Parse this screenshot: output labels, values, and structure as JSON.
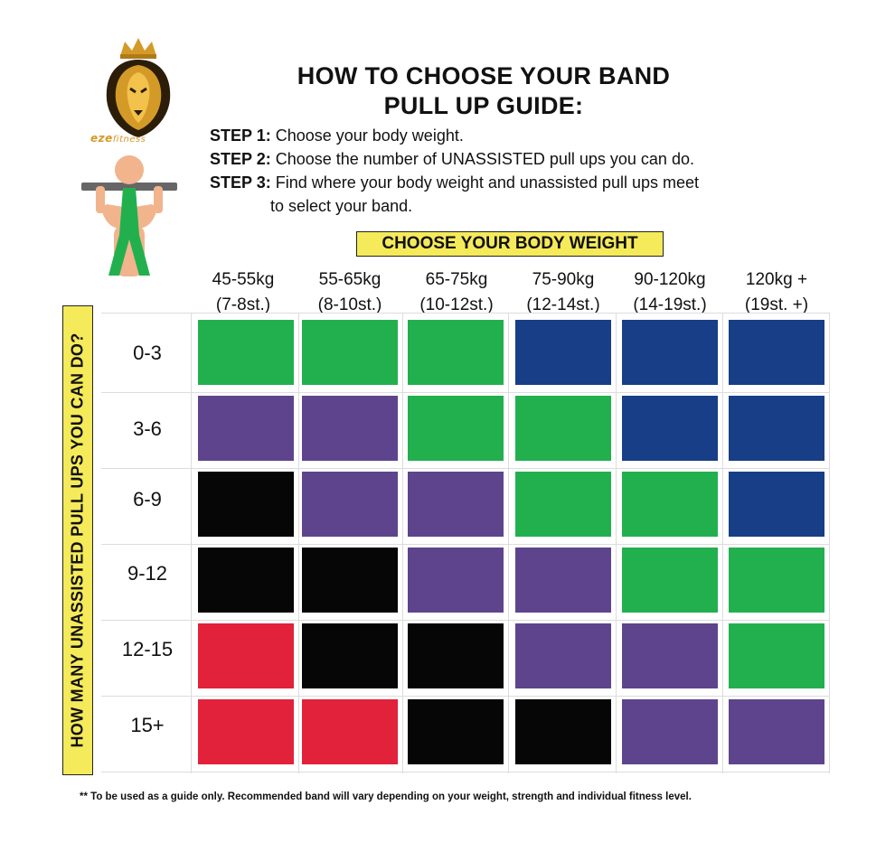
{
  "brand": {
    "name_main": "eze",
    "name_sub": "fitness"
  },
  "title": {
    "line1": "HOW TO CHOOSE YOUR BAND",
    "line2": "PULL UP GUIDE:"
  },
  "steps": [
    {
      "label": "STEP 1:",
      "text": "Choose your body weight."
    },
    {
      "label": "STEP 2:",
      "text": "Choose the number of UNASSISTED pull ups you can do."
    },
    {
      "label": "STEP 3:",
      "text": "Find where your body weight and unassisted pull ups meet",
      "cont": "to select your band."
    }
  ],
  "chart_data": {
    "type": "heatmap",
    "title": "CHOOSE YOUR BODY WEIGHT",
    "xlabel": "CHOOSE YOUR BODY WEIGHT",
    "ylabel": "HOW MANY UNASSISTED PULL UPS YOU CAN DO?",
    "x_categories": [
      {
        "kg": "45-55kg",
        "st": "(7-8st.)"
      },
      {
        "kg": "55-65kg",
        "st": "(8-10st.)"
      },
      {
        "kg": "65-75kg",
        "st": "(10-12st.)"
      },
      {
        "kg": "75-90kg",
        "st": "(12-14st.)"
      },
      {
        "kg": "90-120kg",
        "st": "(14-19st.)"
      },
      {
        "kg": "120kg +",
        "st": "(19st. +)"
      }
    ],
    "y_categories": [
      "0-3",
      "3-6",
      "6-9",
      "9-12",
      "12-15",
      "15+"
    ],
    "band_colors": {
      "green": "#22b04f",
      "blue": "#173e86",
      "purple": "#5e448c",
      "black": "#060606",
      "red": "#e2213a"
    },
    "cells": [
      [
        "green",
        "green",
        "green",
        "blue",
        "blue",
        "blue"
      ],
      [
        "purple",
        "purple",
        "green",
        "green",
        "blue",
        "blue"
      ],
      [
        "black",
        "purple",
        "purple",
        "green",
        "green",
        "blue"
      ],
      [
        "black",
        "black",
        "purple",
        "purple",
        "green",
        "green"
      ],
      [
        "red",
        "black",
        "black",
        "purple",
        "purple",
        "green"
      ],
      [
        "red",
        "red",
        "black",
        "black",
        "purple",
        "purple"
      ]
    ]
  },
  "footnote": "** To be used as a guide only. Recommended band will vary depending on your weight, strength and individual fitness level.",
  "colors": {
    "banner": "#f5ea5a",
    "logo_gold": "#d49a28",
    "skin": "#f1b48d",
    "bar": "#666666"
  }
}
